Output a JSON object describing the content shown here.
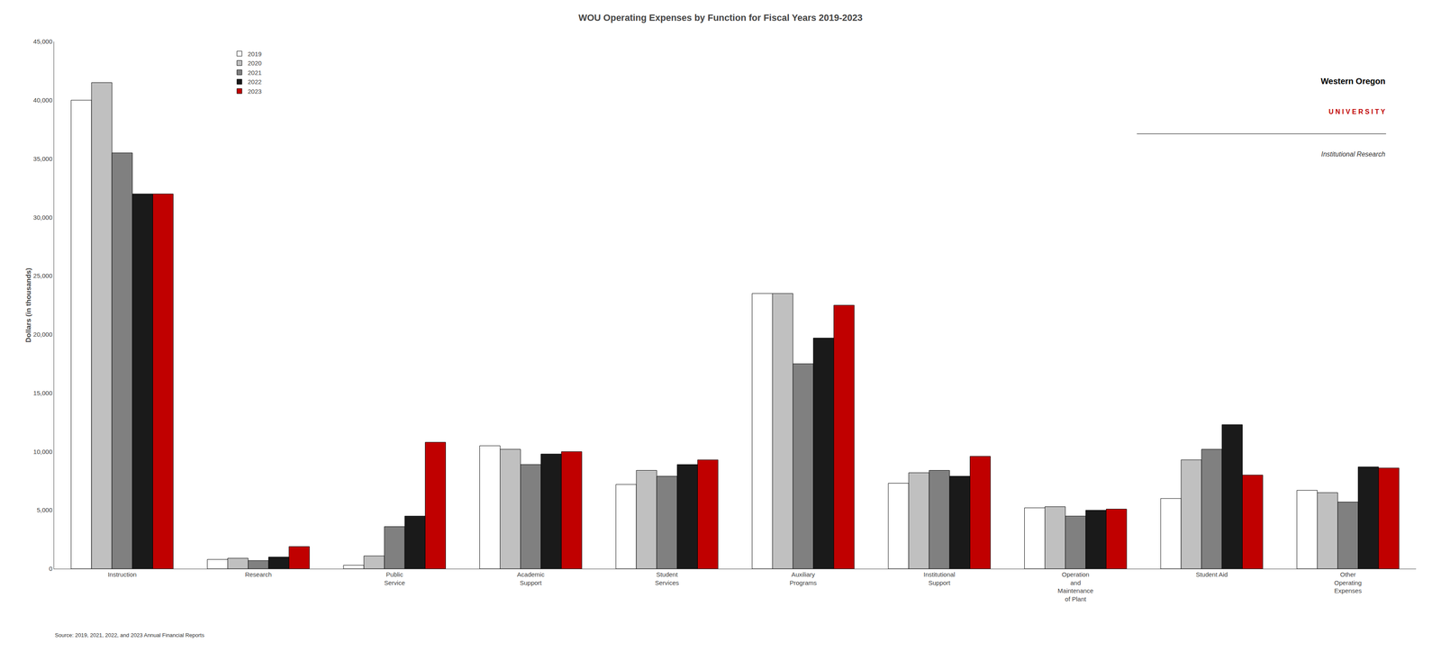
{
  "chart_data": {
    "type": "bar",
    "title": "WOU Operating Expenses by Function for Fiscal Years 2019-2023",
    "ylabel": "Dollars (in thousands)",
    "categories": [
      "Instruction",
      "Research",
      "Public\nService",
      "Academic\nSupport",
      "Student\nServices",
      "Auxiliary\nPrograms",
      "Institutional\nSupport",
      "Operation\nand\nMaintenance\nof Plant",
      "Student Aid",
      "Other\nOperating\nExpenses"
    ],
    "series": [
      {
        "name": "2019",
        "color": "#ffffff",
        "values": [
          40000,
          800,
          300,
          10500,
          7200,
          23500,
          7300,
          5200,
          6000,
          6700
        ]
      },
      {
        "name": "2020",
        "color": "#c0c0c0",
        "values": [
          41500,
          900,
          1100,
          10200,
          8400,
          23500,
          8200,
          5300,
          9300,
          6500
        ]
      },
      {
        "name": "2021",
        "color": "#808080",
        "values": [
          35500,
          700,
          3600,
          8900,
          7900,
          17500,
          8400,
          4500,
          10200,
          5700
        ]
      },
      {
        "name": "2022",
        "color": "#1a1a1a",
        "values": [
          32000,
          1000,
          4500,
          9800,
          8900,
          19700,
          7900,
          5000,
          12300,
          8700
        ]
      },
      {
        "name": "2023",
        "color": "#c00000",
        "values": [
          32000,
          1900,
          10800,
          10000,
          9300,
          22500,
          9600,
          5100,
          8000,
          8600
        ]
      }
    ],
    "ylim": [
      0,
      45000
    ],
    "yticks": [
      0,
      {
        "value": 5000,
        "label": "5,000"
      },
      {
        "value": 10000,
        "label": "10,000"
      },
      {
        "value": 15000,
        "label": "15,000"
      },
      {
        "value": 20000,
        "label": "20,000"
      },
      {
        "value": 25000,
        "label": "25,000"
      },
      {
        "value": 30000,
        "label": "30,000"
      },
      {
        "value": 35000,
        "label": "35,000"
      },
      {
        "value": 40000,
        "label": "40,000"
      },
      {
        "value": 45000,
        "label": "45,000"
      }
    ],
    "grid": false,
    "legend": "upper left",
    "annotations": [
      "Source: 2019, 2021, 2022, and 2023 Annual Financial Reports",
      "Western Oregon",
      "U N I V E R S I T Y",
      "Institutional Research"
    ]
  }
}
